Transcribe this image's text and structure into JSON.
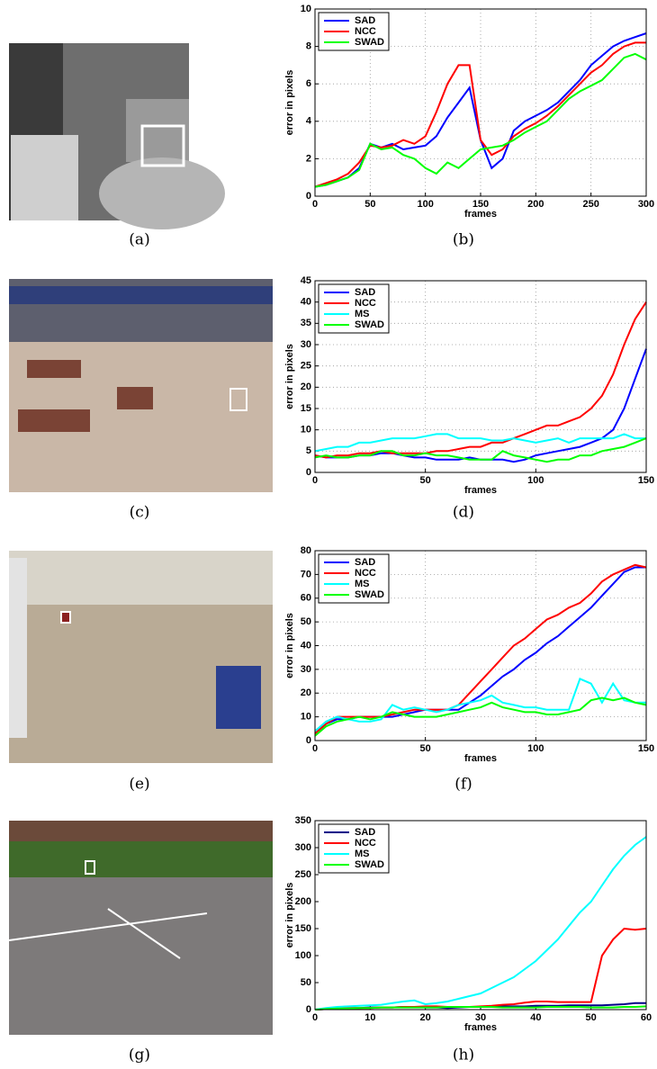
{
  "captions": [
    "(a)",
    "(b)",
    "(c)",
    "(d)",
    "(e)",
    "(f)",
    "(g)",
    "(h)"
  ],
  "chart_data": [
    {
      "type": "line",
      "xlabel": "frames",
      "ylabel": "error in pixels",
      "grid": true,
      "legend": "upper left",
      "xlim": [
        0,
        300
      ],
      "ylim": [
        0,
        10
      ],
      "xticks": [
        0,
        50,
        100,
        150,
        200,
        250,
        300
      ],
      "yticks": [
        0,
        2,
        4,
        6,
        8,
        10
      ],
      "x": [
        0,
        10,
        20,
        30,
        40,
        50,
        60,
        70,
        80,
        90,
        100,
        110,
        120,
        130,
        140,
        150,
        160,
        170,
        180,
        190,
        200,
        210,
        220,
        230,
        240,
        250,
        260,
        270,
        280,
        290,
        300
      ],
      "series": [
        {
          "name": "SAD",
          "color": "#0000ff",
          "values": [
            0.5,
            0.6,
            0.8,
            1.0,
            1.5,
            2.8,
            2.6,
            2.8,
            2.5,
            2.6,
            2.7,
            3.2,
            4.2,
            5.0,
            5.8,
            3.0,
            1.5,
            2.0,
            3.5,
            4.0,
            4.3,
            4.6,
            5.0,
            5.6,
            6.2,
            7.0,
            7.5,
            8.0,
            8.3,
            8.5,
            8.7
          ]
        },
        {
          "name": "NCC",
          "color": "#ff0000",
          "values": [
            0.5,
            0.7,
            0.9,
            1.2,
            1.8,
            2.7,
            2.6,
            2.7,
            3.0,
            2.8,
            3.2,
            4.5,
            6.0,
            7.0,
            7.0,
            3.0,
            2.2,
            2.5,
            3.2,
            3.6,
            3.9,
            4.3,
            4.8,
            5.4,
            6.0,
            6.6,
            7.0,
            7.6,
            8.0,
            8.2,
            8.2
          ]
        },
        {
          "name": "SWAD",
          "color": "#00ff00",
          "values": [
            0.5,
            0.6,
            0.8,
            1.0,
            1.4,
            2.8,
            2.5,
            2.6,
            2.2,
            2.0,
            1.5,
            1.2,
            1.8,
            1.5,
            2.0,
            2.5,
            2.6,
            2.7,
            3.0,
            3.4,
            3.7,
            4.0,
            4.6,
            5.2,
            5.6,
            5.9,
            6.2,
            6.8,
            7.4,
            7.6,
            7.3
          ]
        }
      ]
    },
    {
      "type": "line",
      "xlabel": "frames",
      "ylabel": "error in pixels",
      "grid": true,
      "legend": "upper left",
      "xlim": [
        0,
        150
      ],
      "ylim": [
        0,
        45
      ],
      "xticks": [
        0,
        50,
        100,
        150
      ],
      "yticks": [
        0,
        5,
        10,
        15,
        20,
        25,
        30,
        35,
        40,
        45
      ],
      "x": [
        0,
        5,
        10,
        15,
        20,
        25,
        30,
        35,
        40,
        45,
        50,
        55,
        60,
        65,
        70,
        75,
        80,
        85,
        90,
        95,
        100,
        105,
        110,
        115,
        120,
        125,
        130,
        135,
        140,
        145,
        150
      ],
      "series": [
        {
          "name": "SAD",
          "color": "#0000ff",
          "values": [
            4,
            3.5,
            3.5,
            3.5,
            4,
            4,
            4.5,
            4.5,
            4,
            3.5,
            3.5,
            3,
            3,
            3,
            3.5,
            3,
            3,
            3,
            2.5,
            3,
            4,
            4.5,
            5,
            5.5,
            6,
            7,
            8,
            10,
            15,
            22,
            29
          ]
        },
        {
          "name": "NCC",
          "color": "#ff0000",
          "values": [
            4,
            3.5,
            4,
            4,
            4.5,
            4.5,
            5,
            4.5,
            4.5,
            4.5,
            4.5,
            5,
            5,
            5.5,
            6,
            6,
            7,
            7,
            8,
            9,
            10,
            11,
            11,
            12,
            13,
            15,
            18,
            23,
            30,
            36,
            40
          ]
        },
        {
          "name": "MS",
          "color": "#00ffff",
          "values": [
            5,
            5.5,
            6,
            6,
            7,
            7,
            7.5,
            8,
            8,
            8,
            8.5,
            9,
            9,
            8,
            8,
            8,
            7.5,
            7.5,
            8,
            7.5,
            7,
            7.5,
            8,
            7,
            8,
            8,
            8,
            8,
            9,
            8,
            8
          ]
        },
        {
          "name": "SWAD",
          "color": "#00ff00",
          "values": [
            3.5,
            4,
            3.5,
            3.5,
            4,
            4,
            5,
            5,
            4,
            4,
            4.5,
            4,
            4,
            3.5,
            3,
            3,
            3,
            5,
            4,
            3.5,
            3,
            2.5,
            3,
            3,
            4,
            4,
            5,
            5.5,
            6,
            7,
            8
          ]
        }
      ]
    },
    {
      "type": "line",
      "xlabel": "frames",
      "ylabel": "error in pixels",
      "grid": true,
      "legend": "upper left",
      "xlim": [
        0,
        150
      ],
      "ylim": [
        0,
        80
      ],
      "xticks": [
        0,
        50,
        100,
        150
      ],
      "yticks": [
        0,
        10,
        20,
        30,
        40,
        50,
        60,
        70,
        80
      ],
      "x": [
        0,
        5,
        10,
        15,
        20,
        25,
        30,
        35,
        40,
        45,
        50,
        55,
        60,
        65,
        70,
        75,
        80,
        85,
        90,
        95,
        100,
        105,
        110,
        115,
        120,
        125,
        130,
        135,
        140,
        145,
        150
      ],
      "series": [
        {
          "name": "SAD",
          "color": "#0000ff",
          "values": [
            3,
            7,
            9,
            9,
            10,
            10,
            10,
            10,
            11,
            12,
            13,
            13,
            13,
            13,
            16,
            19,
            23,
            27,
            30,
            34,
            37,
            41,
            44,
            48,
            52,
            56,
            61,
            66,
            71,
            73,
            73
          ]
        },
        {
          "name": "NCC",
          "color": "#ff0000",
          "values": [
            3,
            7,
            10,
            10,
            10,
            10,
            10,
            11,
            12,
            13,
            13,
            13,
            13,
            15,
            20,
            25,
            30,
            35,
            40,
            43,
            47,
            51,
            53,
            56,
            58,
            62,
            67,
            70,
            72,
            74,
            73
          ]
        },
        {
          "name": "MS",
          "color": "#00ffff",
          "values": [
            4,
            8,
            10,
            9,
            8,
            8,
            9,
            15,
            13,
            14,
            13,
            12,
            13,
            15,
            16,
            17,
            19,
            16,
            15,
            14,
            14,
            13,
            13,
            13,
            26,
            24,
            16,
            24,
            17,
            16,
            16
          ]
        },
        {
          "name": "SWAD",
          "color": "#00ff00",
          "values": [
            2,
            6,
            8,
            9,
            10,
            9,
            10,
            12,
            11,
            10,
            10,
            10,
            11,
            12,
            13,
            14,
            16,
            14,
            13,
            12,
            12,
            11,
            11,
            12,
            13,
            17,
            18,
            17,
            18,
            16,
            15
          ]
        }
      ]
    },
    {
      "type": "line",
      "xlabel": "frames",
      "ylabel": "error in pixels",
      "grid": false,
      "legend": "upper left",
      "xlim": [
        0,
        60
      ],
      "ylim": [
        0,
        350
      ],
      "xticks": [
        0,
        10,
        20,
        30,
        40,
        50,
        60
      ],
      "yticks": [
        0,
        50,
        100,
        150,
        200,
        250,
        300,
        350
      ],
      "x": [
        0,
        2,
        4,
        6,
        8,
        10,
        12,
        14,
        16,
        18,
        20,
        22,
        24,
        26,
        28,
        30,
        32,
        34,
        36,
        38,
        40,
        42,
        44,
        46,
        48,
        50,
        52,
        54,
        56,
        58,
        60
      ],
      "series": [
        {
          "name": "SAD",
          "color": "#000088",
          "values": [
            0,
            1,
            2,
            3,
            3,
            4,
            4,
            4,
            5,
            5,
            4,
            4,
            3,
            4,
            5,
            5,
            5,
            6,
            6,
            6,
            7,
            7,
            7,
            8,
            8,
            8,
            8,
            9,
            10,
            12,
            12
          ]
        },
        {
          "name": "NCC",
          "color": "#ff0000",
          "values": [
            0,
            1,
            2,
            3,
            3,
            3,
            4,
            4,
            5,
            5,
            6,
            6,
            5,
            5,
            5,
            6,
            7,
            9,
            10,
            13,
            15,
            15,
            14,
            14,
            14,
            14,
            100,
            130,
            150,
            148,
            150
          ]
        },
        {
          "name": "MS",
          "color": "#00ffff",
          "values": [
            0,
            3,
            5,
            6,
            7,
            8,
            9,
            12,
            15,
            17,
            10,
            12,
            15,
            20,
            25,
            30,
            40,
            50,
            60,
            75,
            90,
            110,
            130,
            155,
            180,
            200,
            230,
            260,
            285,
            305,
            320
          ]
        },
        {
          "name": "SWAD",
          "color": "#00ff00",
          "values": [
            0,
            1,
            2,
            2,
            3,
            3,
            4,
            4,
            4,
            4,
            4,
            4,
            5,
            5,
            5,
            5,
            5,
            4,
            4,
            4,
            4,
            5,
            5,
            5,
            5,
            4,
            4,
            4,
            5,
            5,
            6
          ]
        }
      ]
    }
  ]
}
